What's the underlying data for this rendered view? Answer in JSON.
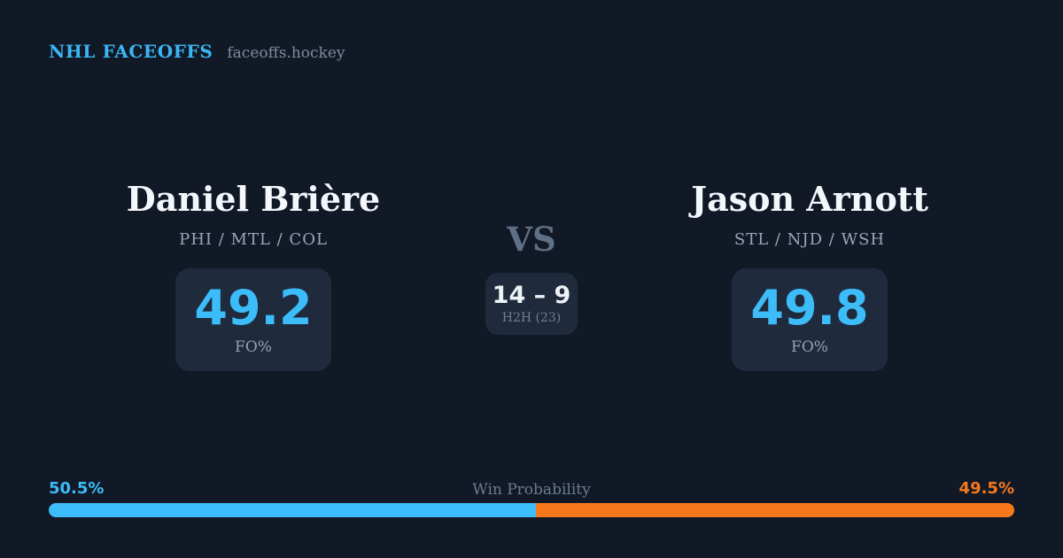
{
  "header": {
    "brand": "NHL FACEOFFS",
    "site": "faceoffs.hockey"
  },
  "left_player": {
    "name": "Daniel Brière",
    "teams": "PHI / MTL / COL",
    "stat_value": "49.2",
    "stat_label": "FO%"
  },
  "right_player": {
    "name": "Jason Arnott",
    "teams": "STL / NJD / WSH",
    "stat_value": "49.8",
    "stat_label": "FO%"
  },
  "matchup": {
    "vs": "VS",
    "h2h_score": "14 – 9",
    "h2h_label": "H2H (23)"
  },
  "win_probability": {
    "title": "Win Probability",
    "left_label": "50.5%",
    "right_label": "49.5%",
    "left_value": 50.5,
    "right_value": 49.5
  },
  "colors": {
    "background": "#111927",
    "panel": "#1f2b3c",
    "accent_blue": "#3cbcf8",
    "accent_orange": "#f8791b",
    "brand_blue": "#3cb6f3",
    "text_primary": "#f3f6fa",
    "text_teams": "#97a6bb",
    "text_slate": "#6b7c92",
    "text_muted": "#93a1b4"
  },
  "chart_data": {
    "type": "bar",
    "title": "Win Probability",
    "categories": [
      "Daniel Brière",
      "Jason Arnott"
    ],
    "values": [
      50.5,
      49.5
    ],
    "unit": "%",
    "xlim": [
      0,
      100
    ],
    "colors": [
      "#3cbcf8",
      "#f8791b"
    ],
    "legend_position": "none",
    "grid": false,
    "annotations": {
      "faceoff_pct": [
        49.2,
        49.8
      ],
      "head_to_head_record": "14 – 9",
      "head_to_head_games": 23
    }
  }
}
